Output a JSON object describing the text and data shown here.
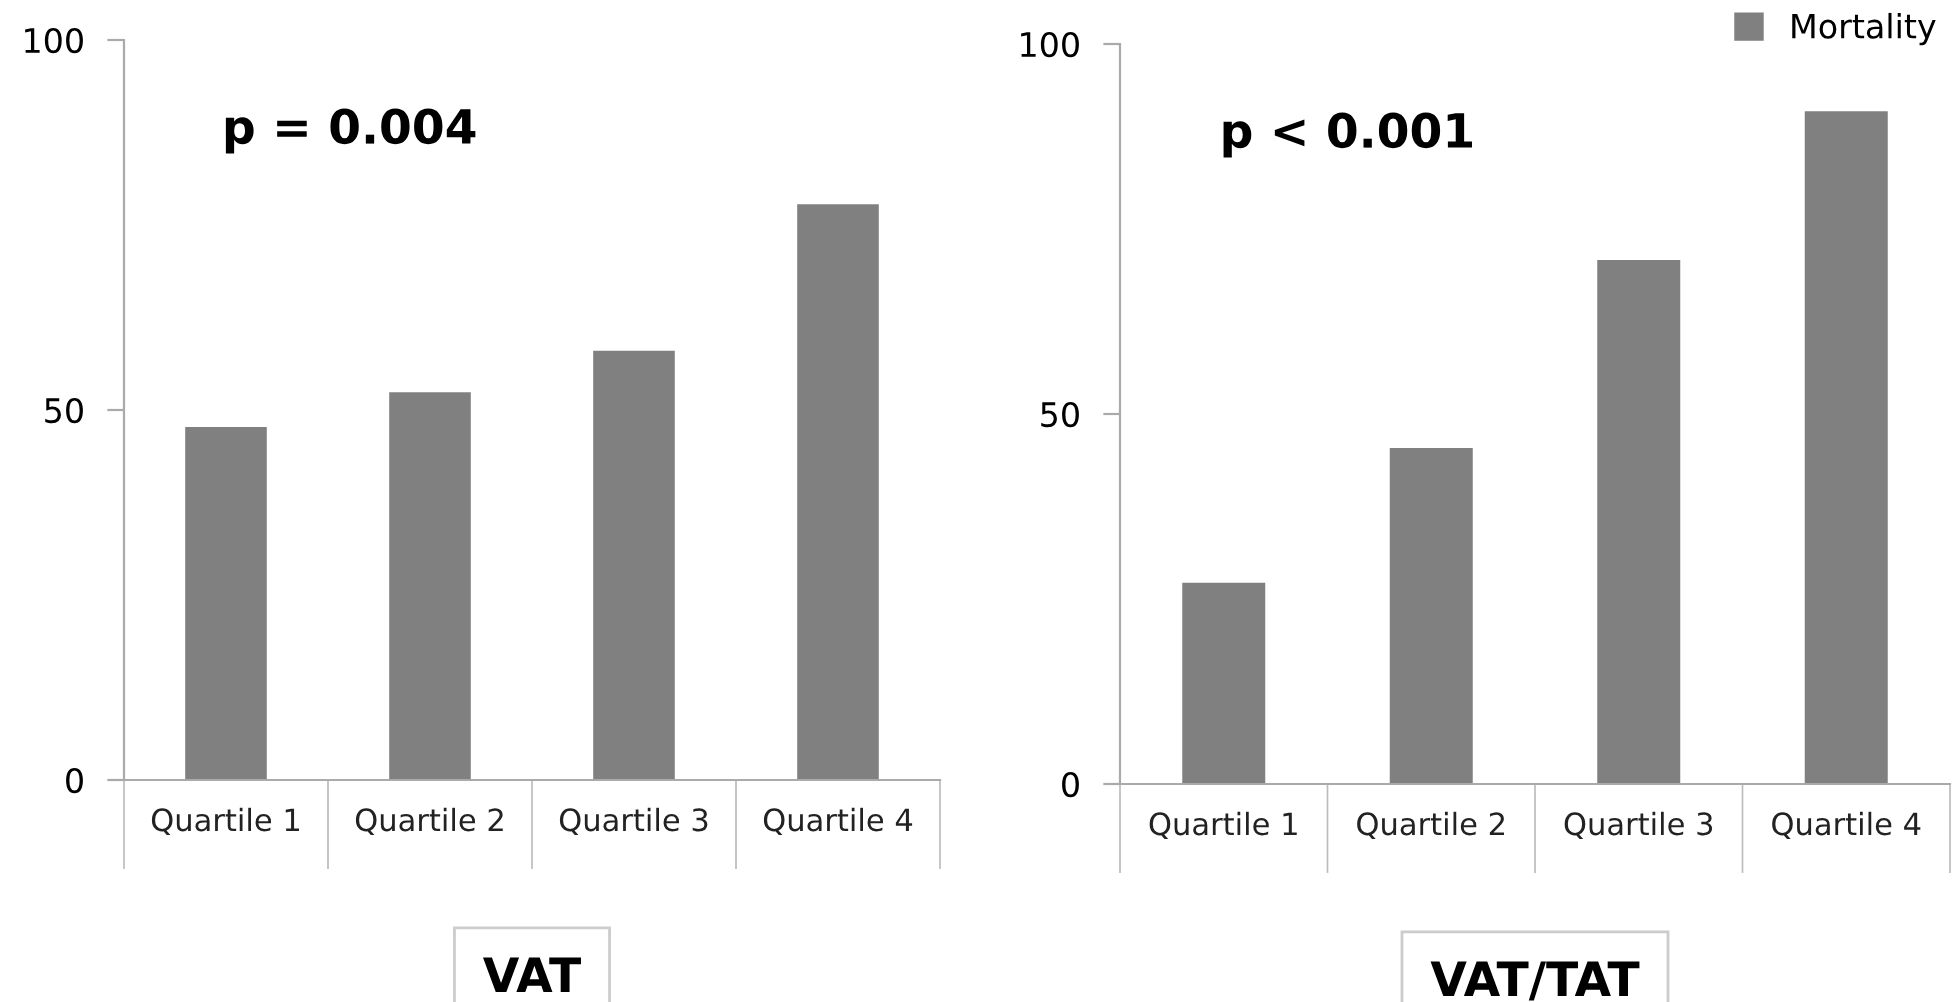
{
  "chart_data": [
    {
      "type": "bar",
      "xlabel": "VAT",
      "categories": [
        "Quartile 1",
        "Quartile 2",
        "Quartile 3",
        "Quartile 4"
      ],
      "series": [
        {
          "color": "#808080",
          "values": [
            47.7,
            52.4,
            58.0,
            77.8
          ]
        }
      ],
      "ylim": [
        0,
        100
      ],
      "yticks": [
        0,
        50,
        100
      ],
      "grid": false,
      "legend": false,
      "annotations": [
        "p = 0.004"
      ]
    },
    {
      "type": "bar",
      "xlabel": "VAT/TAT",
      "categories": [
        "Quartile 1",
        "Quartile 2",
        "Quartile 3",
        "Quartile 4"
      ],
      "series": [
        {
          "name": "Mortality",
          "color": "#808080",
          "values": [
            27.2,
            45.4,
            70.8,
            90.9
          ]
        }
      ],
      "ylim": [
        0,
        100
      ],
      "yticks": [
        0,
        50,
        100
      ],
      "grid": false,
      "legend": "top right",
      "annotations": [
        "p < 0.001"
      ]
    }
  ]
}
